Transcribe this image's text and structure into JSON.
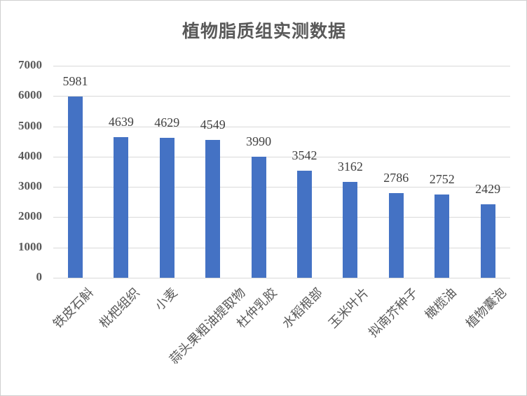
{
  "chart_data": {
    "type": "bar",
    "title": "植物脂质组实测数据",
    "xlabel": "",
    "ylabel": "",
    "ylim": [
      0,
      7000
    ],
    "yticks": [
      "0",
      "1000",
      "2000",
      "3000",
      "4000",
      "5000",
      "6000",
      "7000"
    ],
    "grid": true,
    "legend": null,
    "bar_color": "#4472c4",
    "categories": [
      "铁皮石斛",
      "枇杷组织",
      "小麦",
      "蒜头果粗油提取物",
      "杜仲乳胶",
      "水稻根部",
      "玉米叶片",
      "拟南芥种子",
      "橄榄油",
      "植物囊泡"
    ],
    "values": [
      5981,
      4639,
      4629,
      4549,
      3990,
      3542,
      3162,
      2786,
      2752,
      2429
    ],
    "data_labels": [
      "5981",
      "4639",
      "4629",
      "4549",
      "3990",
      "3542",
      "3162",
      "2786",
      "2752",
      "2429"
    ]
  }
}
